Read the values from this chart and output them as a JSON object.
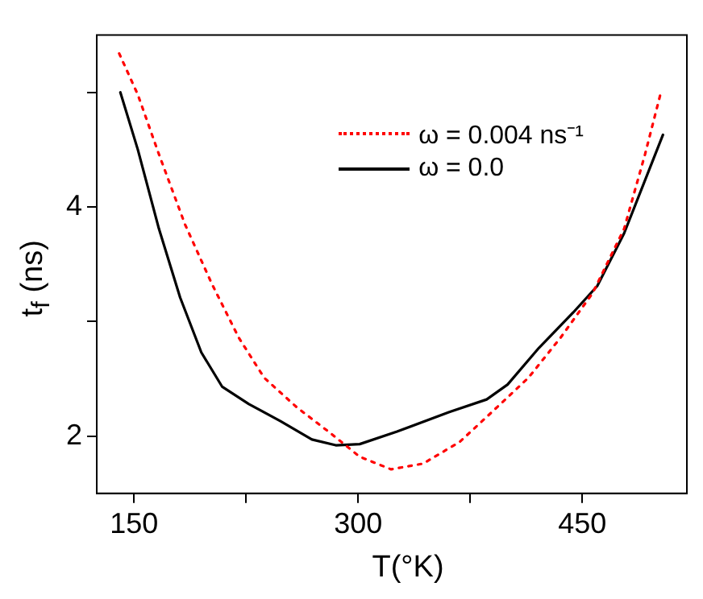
{
  "chart_data": {
    "type": "line",
    "xlabel": "T(°K)",
    "ylabel": "t$_{f}$ (ns)",
    "xlim": [
      125,
      520
    ],
    "ylim": [
      1.5,
      5.5
    ],
    "xticks": [
      150,
      {
        "value": 225,
        "label": null
      },
      300,
      {
        "value": 375,
        "label": null
      },
      450
    ],
    "yticks": [
      2,
      {
        "value": 3,
        "label": null
      },
      4,
      {
        "value": 5,
        "label": null
      }
    ],
    "grid": false,
    "legend": "top right",
    "marker": "none",
    "series": [
      {
        "name": "ω = 0.004 ns⁻¹",
        "color": "#ff0000",
        "line_style": "dotted",
        "x": [
          140,
          152.5,
          166.6,
          184,
          202,
          220,
          237,
          259,
          280,
          301,
          322,
          343.5,
          368,
          389.5,
          414,
          435.5,
          457,
          478,
          492,
          503
        ],
        "values": [
          5.34,
          4.98,
          4.46,
          3.85,
          3.33,
          2.86,
          2.51,
          2.25,
          2.04,
          1.82,
          1.71,
          1.76,
          1.95,
          2.21,
          2.51,
          2.86,
          3.25,
          3.81,
          4.46,
          5.02
        ]
      },
      {
        "name": "ω = 0.0",
        "color": "#000000",
        "line_style": "solid",
        "x": [
          140.8,
          152.5,
          166.6,
          180.8,
          195,
          209,
          226.8,
          248,
          269,
          285,
          301,
          326,
          361,
          386,
          400,
          421,
          444,
          460,
          478,
          504
        ],
        "values": [
          5.0,
          4.5,
          3.81,
          3.21,
          2.73,
          2.43,
          2.28,
          2.13,
          1.97,
          1.92,
          1.93,
          2.04,
          2.21,
          2.32,
          2.45,
          2.77,
          3.08,
          3.31,
          3.77,
          4.63
        ]
      }
    ]
  }
}
